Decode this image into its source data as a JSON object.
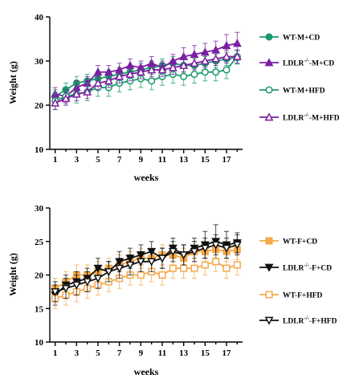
{
  "colors": {
    "wt_m": "#1a9a6c",
    "ldlr_m": "#7b1fa2",
    "wt_f": "#f5a94a",
    "ldlr_f": "#111111"
  },
  "chart_data": [
    {
      "type": "line",
      "xlabel": "weeks",
      "ylabel": "Weight (g)",
      "xlim": [
        0.5,
        18.5
      ],
      "ylim": [
        10,
        40
      ],
      "xticks": [
        "1",
        "3",
        "5",
        "7",
        "9",
        "11",
        "13",
        "15",
        "17"
      ],
      "yticks": [
        "10",
        "20",
        "30",
        "40"
      ],
      "legend_position": "right",
      "x": [
        1,
        2,
        3,
        4,
        5,
        6,
        7,
        8,
        9,
        10,
        11,
        12,
        13,
        14,
        15,
        16,
        17,
        18
      ],
      "series": [
        {
          "name": "WT-M+CD",
          "marker": "circle-filled",
          "color": "#1a9a6c",
          "values": [
            22.0,
            23.5,
            25.0,
            25.5,
            26.0,
            26.5,
            27.0,
            27.5,
            28.0,
            28.5,
            29.0,
            29.5,
            29.0,
            29.0,
            29.5,
            30.0,
            30.5,
            30.8
          ],
          "errors": [
            1.5,
            1.5,
            1.5,
            1.5,
            1.5,
            1.5,
            1.5,
            1.5,
            1.5,
            1.5,
            1.5,
            1.5,
            1.5,
            1.5,
            1.5,
            1.5,
            1.5,
            1.5
          ]
        },
        {
          "name": "LDLR-/--M+CD",
          "marker": "triangle-filled",
          "color": "#7b1fa2",
          "values": [
            22.5,
            22.0,
            24.0,
            25.0,
            27.5,
            27.5,
            28.0,
            29.0,
            28.5,
            29.5,
            28.5,
            30.0,
            31.0,
            31.5,
            32.0,
            32.5,
            33.5,
            34.0
          ],
          "errors": [
            1.5,
            1.5,
            1.5,
            1.5,
            1.5,
            1.5,
            1.5,
            1.5,
            1.5,
            1.5,
            1.5,
            1.5,
            2.0,
            2.0,
            2.0,
            2.0,
            2.5,
            2.5
          ]
        },
        {
          "name": "WT-M+HFD",
          "marker": "circle-open",
          "color": "#1a9a6c",
          "values": [
            21.0,
            22.0,
            22.5,
            23.0,
            24.0,
            24.0,
            25.0,
            25.5,
            26.0,
            25.5,
            26.5,
            27.0,
            26.5,
            27.0,
            27.5,
            27.5,
            28.0,
            31.0
          ],
          "errors": [
            2.0,
            2.0,
            2.0,
            2.0,
            2.0,
            2.0,
            2.0,
            2.0,
            2.0,
            2.0,
            2.0,
            2.0,
            2.0,
            2.0,
            2.0,
            2.0,
            2.0,
            1.5
          ]
        },
        {
          "name": "LDLR-/--M+HFD",
          "marker": "triangle-open",
          "color": "#7b1fa2",
          "values": [
            20.5,
            21.5,
            22.5,
            23.0,
            25.0,
            25.5,
            26.5,
            27.0,
            27.5,
            28.0,
            28.0,
            28.5,
            29.0,
            29.5,
            30.0,
            30.5,
            31.0,
            31.0
          ],
          "errors": [
            1.5,
            1.5,
            1.5,
            1.5,
            1.5,
            1.5,
            1.5,
            1.5,
            1.5,
            1.5,
            1.5,
            1.5,
            1.5,
            1.5,
            1.5,
            1.5,
            1.5,
            1.5
          ]
        }
      ]
    },
    {
      "type": "line",
      "xlabel": "weeks",
      "ylabel": "Weight (g)",
      "xlim": [
        0.5,
        18.5
      ],
      "ylim": [
        10,
        30
      ],
      "xticks": [
        "1",
        "3",
        "5",
        "7",
        "9",
        "11",
        "13",
        "15",
        "17"
      ],
      "yticks": [
        "10",
        "15",
        "20",
        "25",
        "30"
      ],
      "legend_position": "right",
      "x": [
        1,
        2,
        3,
        4,
        5,
        6,
        7,
        8,
        9,
        10,
        11,
        12,
        13,
        14,
        15,
        16,
        17,
        18
      ],
      "series": [
        {
          "name": "WT-F+CD",
          "marker": "square-filled",
          "color": "#f5a94a",
          "values": [
            18.0,
            19.0,
            20.0,
            20.0,
            20.5,
            21.0,
            21.5,
            22.0,
            22.5,
            22.5,
            23.0,
            23.0,
            22.5,
            23.5,
            23.5,
            23.8,
            23.5,
            23.8
          ],
          "errors": [
            1.5,
            1.5,
            1.5,
            1.5,
            1.5,
            1.5,
            1.5,
            1.5,
            1.5,
            1.5,
            1.5,
            1.5,
            1.5,
            1.5,
            1.5,
            1.5,
            1.5,
            1.5
          ]
        },
        {
          "name": "LDLR-/--F+CD",
          "marker": "triangle-down-filled",
          "color": "#111111",
          "values": [
            17.0,
            18.5,
            19.0,
            19.5,
            21.0,
            20.5,
            22.0,
            22.5,
            23.0,
            23.5,
            22.5,
            24.0,
            23.0,
            24.0,
            24.5,
            25.0,
            24.5,
            24.8
          ],
          "errors": [
            1.5,
            1.5,
            1.5,
            1.5,
            1.5,
            1.5,
            1.5,
            1.5,
            1.5,
            1.5,
            1.5,
            1.5,
            1.5,
            1.5,
            2.0,
            2.5,
            2.0,
            1.5
          ]
        },
        {
          "name": "WT-F+HFD",
          "marker": "square-open",
          "color": "#f5a94a",
          "values": [
            16.5,
            17.0,
            17.5,
            18.0,
            18.5,
            19.0,
            19.5,
            20.0,
            20.0,
            20.5,
            20.0,
            21.0,
            21.0,
            21.0,
            21.5,
            22.0,
            21.0,
            21.5
          ],
          "errors": [
            1.5,
            1.5,
            1.5,
            1.5,
            1.5,
            1.5,
            1.5,
            1.5,
            1.5,
            1.5,
            1.5,
            1.5,
            1.5,
            1.5,
            1.5,
            1.5,
            1.5,
            1.5
          ]
        },
        {
          "name": "LDLR-/--F+HFD",
          "marker": "triangle-down-open",
          "color": "#111111",
          "values": [
            17.5,
            18.0,
            18.5,
            19.0,
            19.5,
            20.5,
            21.0,
            21.5,
            22.0,
            22.0,
            22.5,
            23.5,
            23.0,
            23.5,
            24.0,
            24.5,
            24.0,
            24.5
          ],
          "errors": [
            1.5,
            1.5,
            1.5,
            1.5,
            1.5,
            1.5,
            1.5,
            1.5,
            1.5,
            1.5,
            1.5,
            1.5,
            1.5,
            1.5,
            1.5,
            1.5,
            1.5,
            1.5
          ]
        }
      ]
    }
  ],
  "legends": [
    {
      "items": [
        {
          "prefix": "WT-M+CD",
          "sup": "",
          "suffix": ""
        },
        {
          "prefix": "LDLR",
          "sup": "-/-",
          "suffix": "-M+CD"
        },
        {
          "prefix": "WT-M+HFD",
          "sup": "",
          "suffix": ""
        },
        {
          "prefix": "LDLR",
          "sup": "-/-",
          "suffix": "-M+HFD"
        }
      ]
    },
    {
      "items": [
        {
          "prefix": "WT-F+CD",
          "sup": "",
          "suffix": ""
        },
        {
          "prefix": "LDLR",
          "sup": "-/-",
          "suffix": "-F+CD"
        },
        {
          "prefix": "WT-F+HFD",
          "sup": "",
          "suffix": ""
        },
        {
          "prefix": "LDLR",
          "sup": "-/-",
          "suffix": "-F+HFD"
        }
      ]
    }
  ]
}
